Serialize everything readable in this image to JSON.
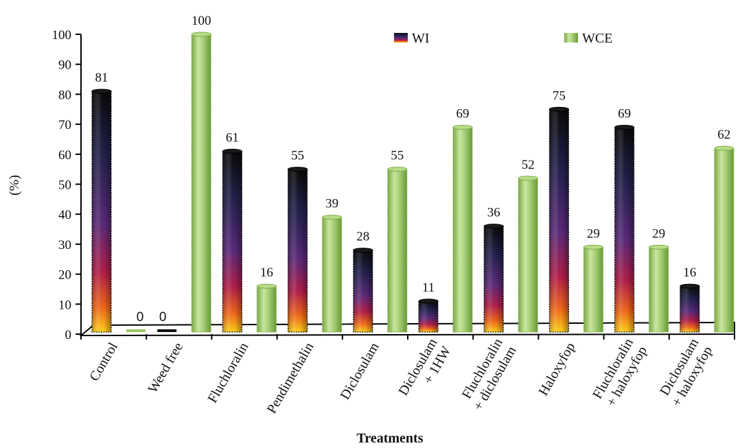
{
  "chart_data": {
    "type": "bar",
    "categories": [
      [
        "Control"
      ],
      [
        "Weed free"
      ],
      [
        "Fluchloralin"
      ],
      [
        "Pendimethalin"
      ],
      [
        "Diclosulam"
      ],
      [
        "Diclosulam",
        "+ 1HW"
      ],
      [
        "Fluchloralin",
        "+ diclosulam"
      ],
      [
        "Haloxyfop"
      ],
      [
        "Fluchloralin",
        "+ haloxyfop"
      ],
      [
        "Diclosulam",
        "+ haloxyfop"
      ]
    ],
    "series": [
      {
        "name": "WI",
        "values": [
          81,
          0,
          61,
          55,
          28,
          11,
          36,
          75,
          69,
          16
        ]
      },
      {
        "name": "WCE",
        "values": [
          0,
          100,
          16,
          39,
          55,
          69,
          52,
          29,
          29,
          62
        ]
      }
    ],
    "title": "",
    "xlabel": "Treatments",
    "ylabel": "(%)",
    "ylim": [
      0,
      100
    ],
    "yticks": [
      "0",
      "10",
      "20",
      "30",
      "40",
      "50",
      "60",
      "70",
      "80",
      "90",
      "100"
    ],
    "grid": false,
    "legend_position": "top-right",
    "colors": {
      "WI_top": "#111111",
      "WI_mid1": "#3a2a7a",
      "WI_mid2": "#b21e4a",
      "WI_bottom": "#ffd21a",
      "WCE_light": "#c9e6a0",
      "WCE_dark": "#6f9e3c"
    }
  }
}
